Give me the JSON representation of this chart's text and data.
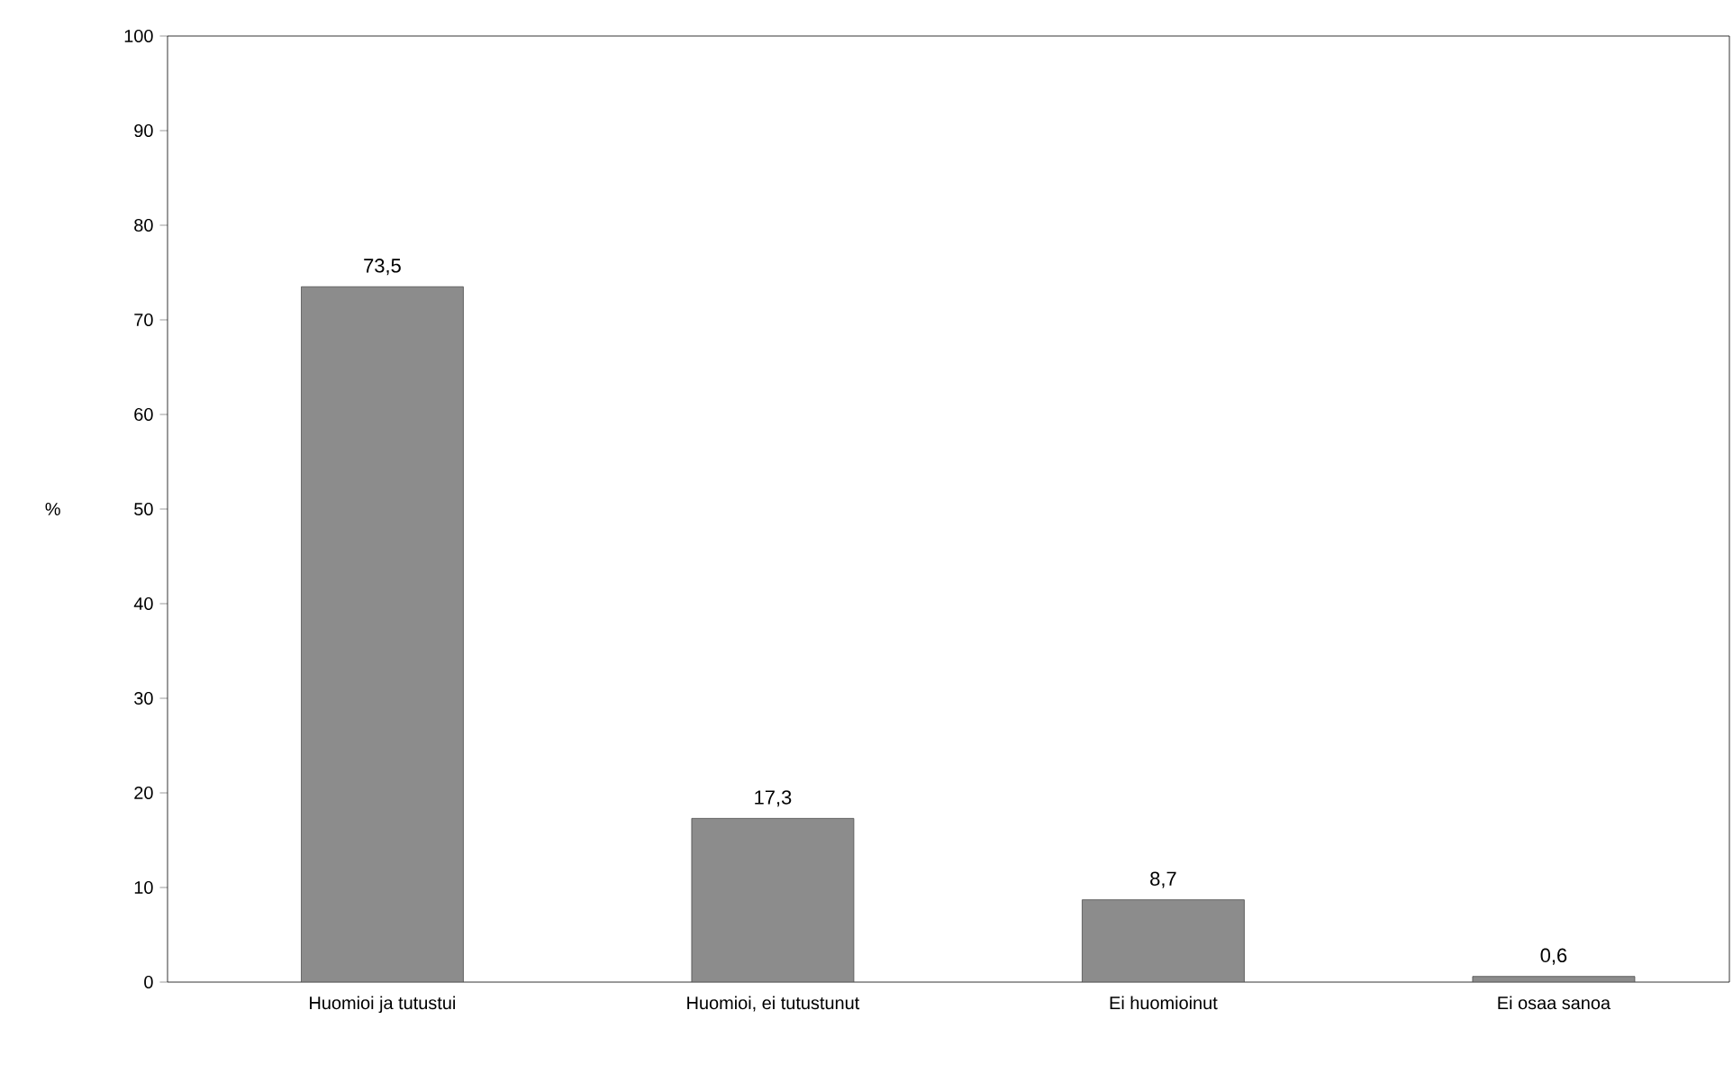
{
  "chart_data": {
    "type": "bar",
    "ylabel": "%",
    "categories": [
      "Huomioi ja tutustui",
      "Huomioi, ei tutustunut",
      "Ei huomioinut",
      "Ei osaa sanoa"
    ],
    "values": [
      73.5,
      17.3,
      8.7,
      0.6
    ],
    "value_labels": [
      "73,5",
      "17,3",
      "8,7",
      "0,6"
    ],
    "color": "#8c8c8c",
    "ylim": [
      0,
      100
    ],
    "yticks": [
      0,
      10,
      20,
      30,
      40,
      50,
      60,
      70,
      80,
      90,
      100
    ]
  }
}
